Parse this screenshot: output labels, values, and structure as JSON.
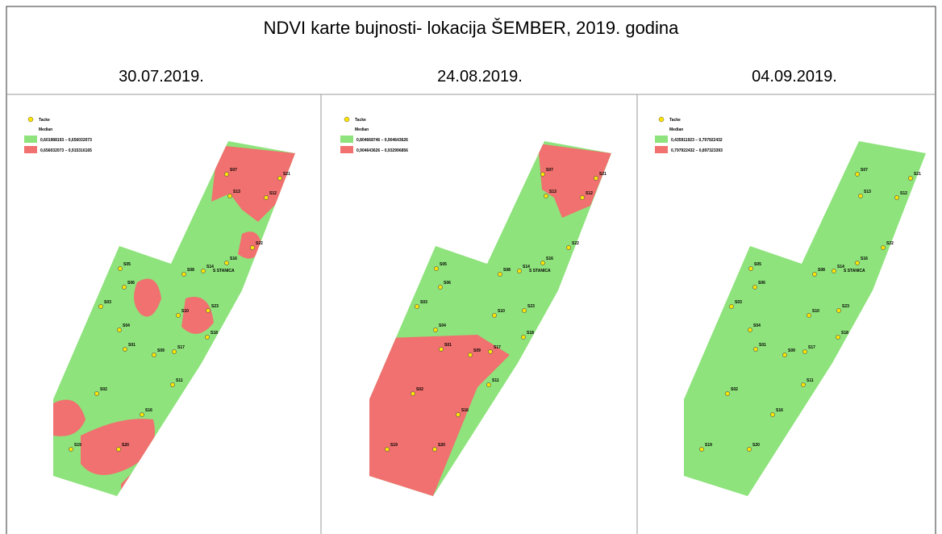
{
  "title": "NDVI karte bujnosti- lokacija ŠEMBER, 2019. godina",
  "panels": [
    {
      "date": "30.07.2019.",
      "legend": {
        "points": "Tacke",
        "heading": "Median",
        "classes": [
          "0,601988193 – 0,656032073",
          "0,656032073 – 0,915316165"
        ]
      }
    },
    {
      "date": "24.08.2019.",
      "legend": {
        "points": "Tacke",
        "heading": "Median",
        "classes": [
          "0,804668746 – 0,904643626",
          "0,904643626 – 0,932996856"
        ]
      }
    },
    {
      "date": "04.09.2019.",
      "legend": {
        "points": "Tacke",
        "heading": "Median",
        "classes": [
          "0,435911923 – 0,797922432",
          "0,797922432 – 0,897323393"
        ]
      }
    }
  ],
  "points": [
    "S07",
    "S21",
    "S13",
    "S12",
    "S22",
    "S16",
    "S14",
    "S STANICA",
    "S08",
    "S05",
    "S06",
    "S03",
    "S10",
    "S23",
    "S04",
    "S18",
    "S01",
    "S09",
    "S17",
    "S11",
    "S02",
    "S16",
    "S19",
    "S20"
  ]
}
